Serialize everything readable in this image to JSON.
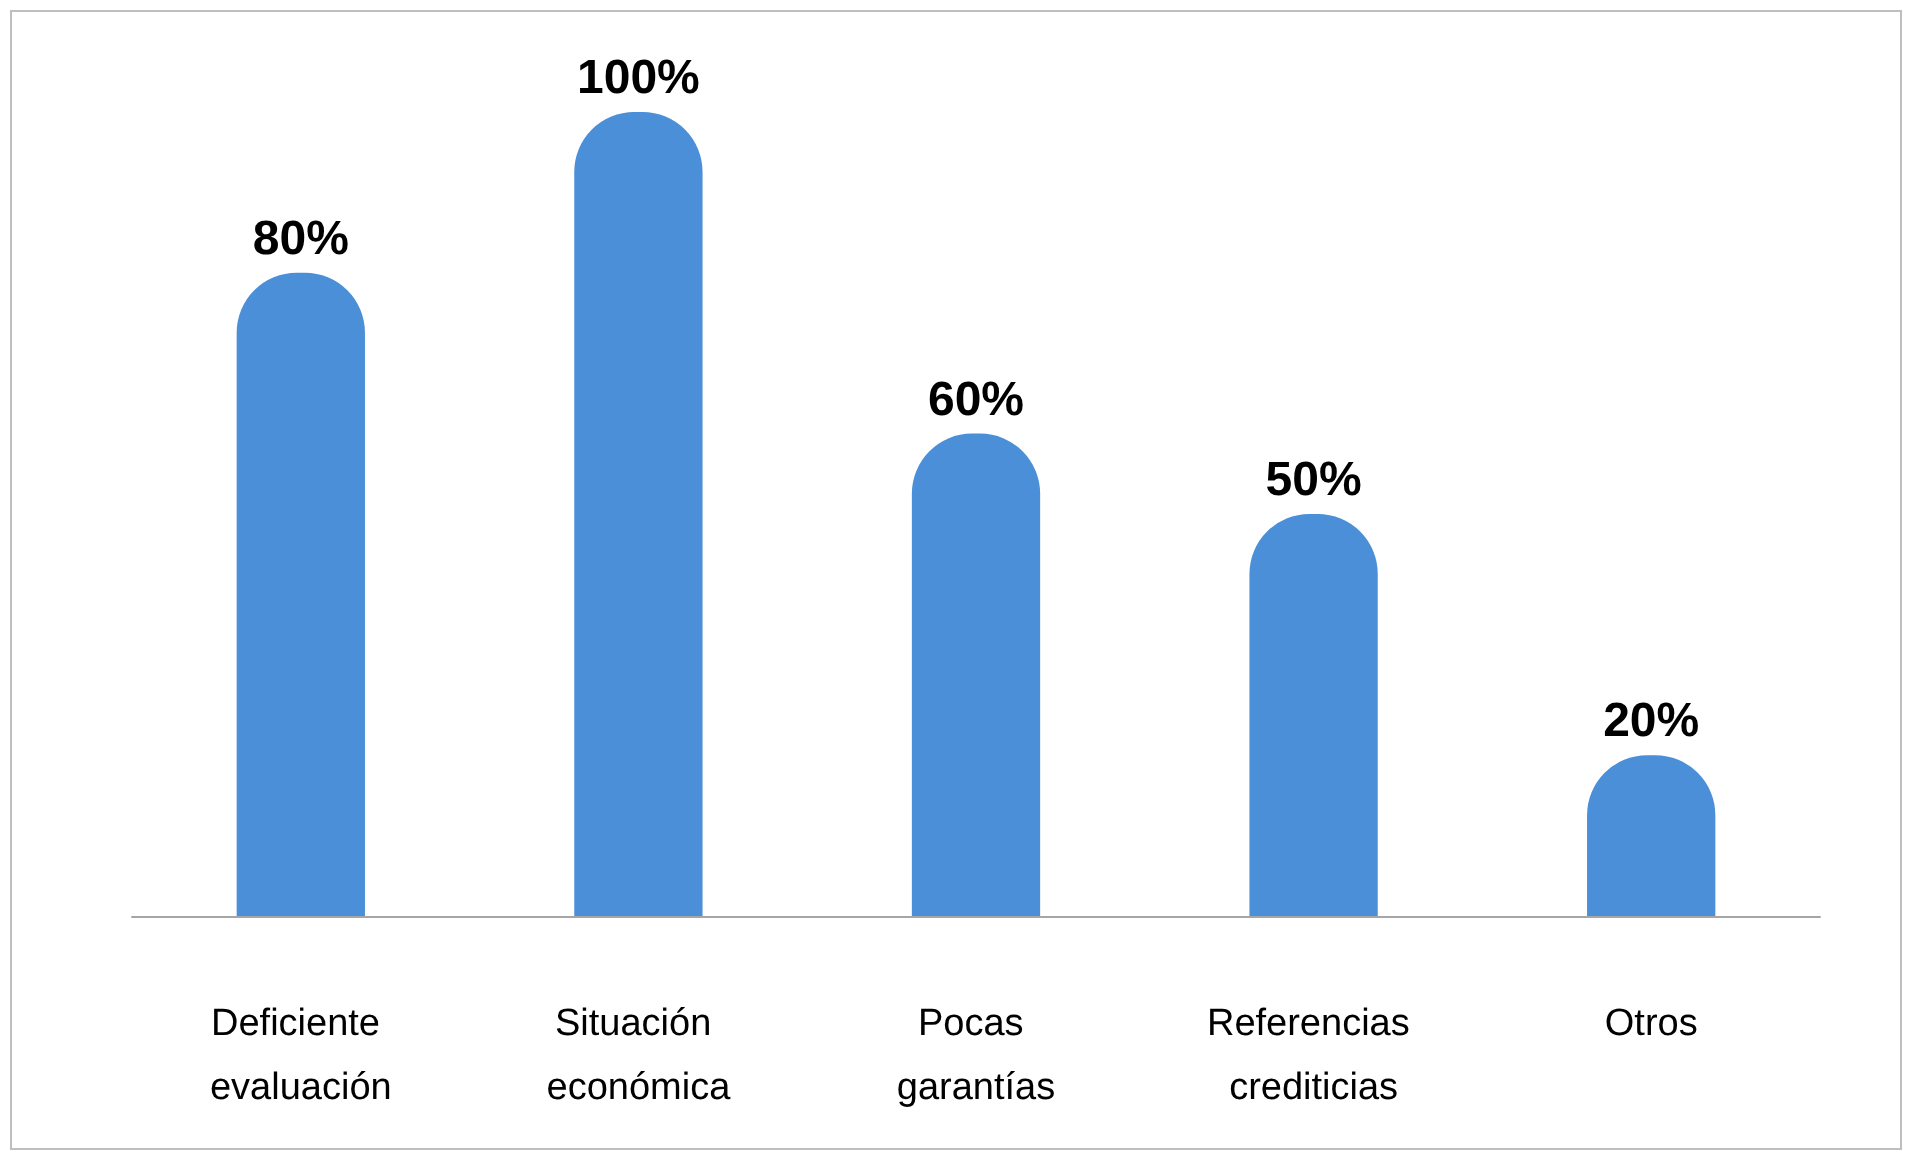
{
  "chart_data": {
    "type": "bar",
    "categories": [
      "Deficiente evaluación",
      "Situación económica",
      "Pocas garantías",
      "Referencias crediticias",
      "Otros"
    ],
    "values": [
      80,
      100,
      60,
      50,
      20
    ],
    "color": "#4a8fd8",
    "value_labels": [
      "80%",
      "100%",
      "60%",
      "50%",
      "20%"
    ],
    "tick_labels": "x"
  }
}
